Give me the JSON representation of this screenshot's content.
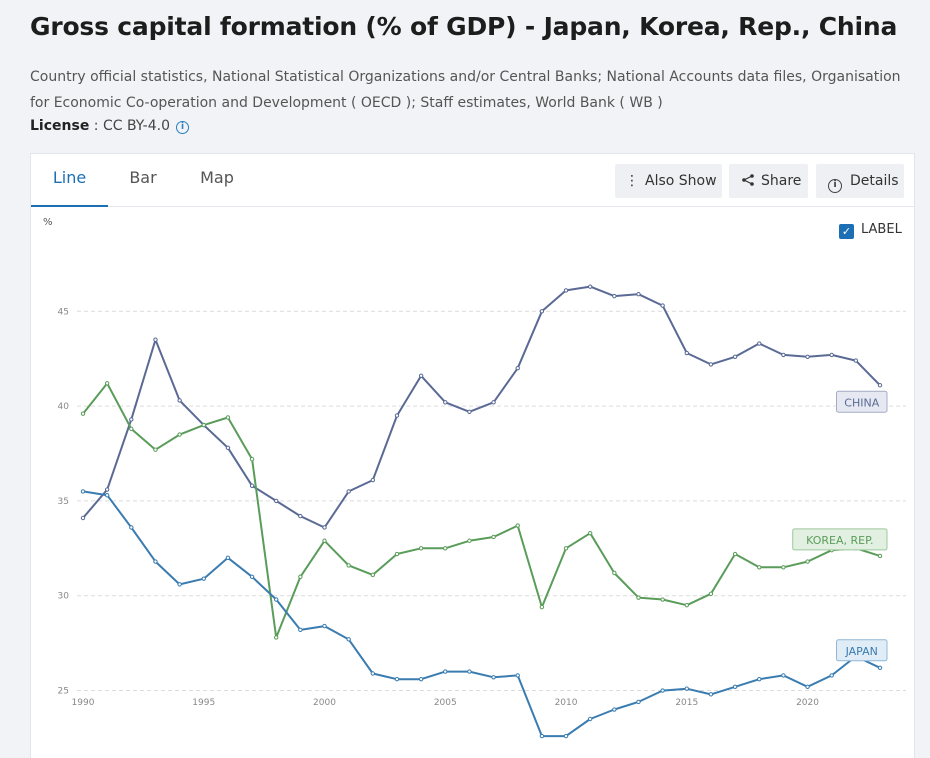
{
  "page": {
    "title": "Gross capital formation (% of GDP) - Japan, Korea, Rep., China",
    "source": "Country official statistics, National Statistical Organizations and/or Central Banks; National Accounts data files, Organisation for Economic Co-operation and Development ( OECD ); Staff estimates, World Bank ( WB )",
    "license_key": "License",
    "license_sep": " : ",
    "license_value": "CC BY-4.0",
    "info_glyph": "i"
  },
  "tabs": [
    {
      "label": "Line",
      "active": true
    },
    {
      "label": "Bar",
      "active": false
    },
    {
      "label": "Map",
      "active": false
    }
  ],
  "toolbar": {
    "also_show_icon": "vertical-dots-icon",
    "also_show_label": "Also Show",
    "share_icon": "share-icon",
    "share_label": "Share",
    "details_icon": "info-circle-icon",
    "details_label": "Details"
  },
  "label_toggle": {
    "checked": true,
    "label": "LABEL",
    "check_glyph": "✓"
  },
  "chart_data": {
    "type": "line",
    "title": "Gross capital formation (% of GDP) - Japan, Korea, Rep., China",
    "ylabel": "%",
    "xlabel": "",
    "ylim": [
      20.6,
      50.5
    ],
    "xlim": [
      1990,
      2023
    ],
    "yticks": [
      25,
      30,
      35,
      40,
      45
    ],
    "xticks": [
      1990,
      1995,
      2000,
      2005,
      2010,
      2015,
      2020
    ],
    "grid": true,
    "x": [
      1990,
      1991,
      1992,
      1993,
      1994,
      1995,
      1996,
      1997,
      1998,
      1999,
      2000,
      2001,
      2002,
      2003,
      2004,
      2005,
      2006,
      2007,
      2008,
      2009,
      2010,
      2011,
      2012,
      2013,
      2014,
      2015,
      2016,
      2017,
      2018,
      2019,
      2020,
      2021,
      2022,
      2023
    ],
    "series": [
      {
        "name": "CHINA",
        "color": "#5a6a95",
        "label_bg": "#e6e9f2",
        "label_border": "#a4acc6",
        "values": [
          34.1,
          35.6,
          39.3,
          43.5,
          40.3,
          39.0,
          37.8,
          35.8,
          35.0,
          34.2,
          33.6,
          35.5,
          36.1,
          39.5,
          41.6,
          40.2,
          39.7,
          40.2,
          42.0,
          45.0,
          46.1,
          46.3,
          45.8,
          45.9,
          45.3,
          42.8,
          42.2,
          42.6,
          43.3,
          42.7,
          42.6,
          42.7,
          42.4,
          41.1
        ]
      },
      {
        "name": "KOREA, REP.",
        "color": "#5a9c5a",
        "label_bg": "#e2f0e2",
        "label_border": "#9dc89d",
        "values": [
          39.6,
          41.2,
          38.8,
          37.7,
          38.5,
          39.0,
          39.4,
          37.2,
          27.8,
          31.0,
          32.9,
          31.6,
          31.1,
          32.2,
          32.5,
          32.5,
          32.9,
          33.1,
          33.7,
          29.4,
          32.5,
          33.3,
          31.2,
          29.9,
          29.8,
          29.5,
          30.1,
          32.2,
          31.5,
          31.5,
          31.8,
          32.4,
          32.5,
          32.1
        ]
      },
      {
        "name": "JAPAN",
        "color": "#3a7cb0",
        "label_bg": "#e0edf7",
        "label_border": "#8fb8d8",
        "values": [
          35.5,
          35.3,
          33.6,
          31.8,
          30.6,
          30.9,
          32.0,
          31.0,
          29.8,
          28.2,
          28.4,
          27.7,
          25.9,
          25.6,
          25.6,
          26.0,
          26.0,
          25.7,
          25.8,
          22.6,
          22.6,
          23.5,
          24.0,
          24.4,
          25.0,
          25.1,
          24.8,
          25.2,
          25.6,
          25.8,
          25.2,
          25.8,
          26.8,
          26.2
        ]
      }
    ]
  }
}
